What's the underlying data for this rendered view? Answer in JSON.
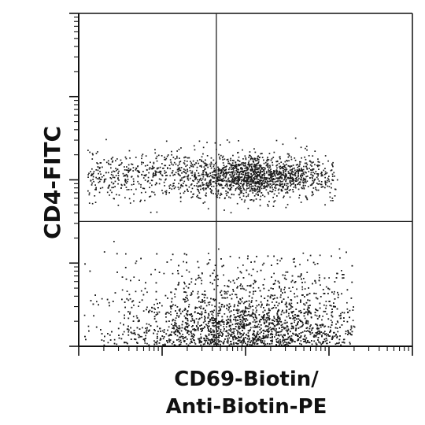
{
  "chart_data": {
    "type": "scatter",
    "title": "",
    "xlabel_lines": [
      "CD69-Biotin/",
      "Anti-Biotin-PE"
    ],
    "ylabel": "CD4-FITC",
    "x_scale": "log",
    "y_scale": "log",
    "xlim_decades": [
      0,
      4
    ],
    "ylim_decades": [
      0,
      4
    ],
    "x_gate_decade": 1.65,
    "y_gate_decade": 1.5,
    "tick_labels_shown": false,
    "grid": false,
    "legend": "none",
    "colors": {
      "points": "#1a1a1a",
      "axes": "#111111",
      "gate": "#222222"
    },
    "populations": [
      {
        "name": "",
        "quadrant": "upper",
        "approx_fraction": 0.38,
        "center_decades": [
          2.2,
          2.05
        ],
        "spread_decades": [
          0.45,
          0.12
        ],
        "x_range_decades": [
          0.1,
          3.1
        ]
      },
      {
        "name": "",
        "quadrant": "lower",
        "approx_fraction": 0.62,
        "center_decades": [
          2.0,
          0.45
        ],
        "spread_decades": [
          0.8,
          0.35
        ],
        "x_range_decades": [
          0.05,
          3.3
        ]
      }
    ]
  }
}
